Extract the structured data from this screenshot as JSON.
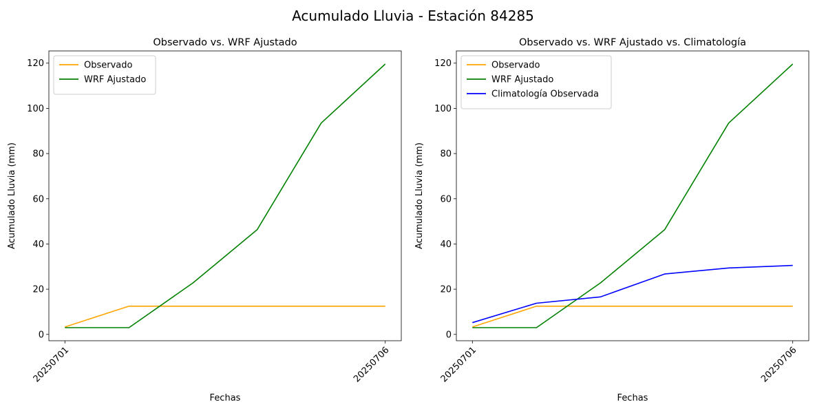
{
  "figure": {
    "title": "Acumulado Lluvia - Estación 84285"
  },
  "chart_data": [
    {
      "type": "line",
      "title": "Observado vs. WRF Ajustado",
      "xlabel": "Fechas",
      "ylabel": "Acumulado Lluvia (mm)",
      "x": [
        "20250701",
        "20250702",
        "20250703",
        "20250704",
        "20250705",
        "20250706"
      ],
      "xticks": [
        "20250701",
        "20250706"
      ],
      "yticks": [
        0,
        20,
        40,
        60,
        80,
        100,
        120
      ],
      "ylim": [
        -2.8,
        125.4
      ],
      "grid": false,
      "legend": "top-left",
      "series": [
        {
          "name": "Observado",
          "color": "#ffa500",
          "values": [
            3.3,
            12.5,
            12.5,
            12.5,
            12.5,
            12.5
          ]
        },
        {
          "name": "WRF Ajustado",
          "color": "#008000",
          "values": [
            3.0,
            3.0,
            22.8,
            46.3,
            93.5,
            119.6
          ]
        }
      ]
    },
    {
      "type": "line",
      "title": "Observado vs. WRF Ajustado vs. Climatología",
      "xlabel": "Fechas",
      "ylabel": "Acumulado Lluvia (mm)",
      "x": [
        "20250701",
        "20250702",
        "20250703",
        "20250704",
        "20250705",
        "20250706"
      ],
      "xticks": [
        "20250701",
        "20250706"
      ],
      "yticks": [
        0,
        20,
        40,
        60,
        80,
        100,
        120
      ],
      "ylim": [
        -2.8,
        125.4
      ],
      "grid": false,
      "legend": "top-left",
      "series": [
        {
          "name": "Observado",
          "color": "#ffa500",
          "values": [
            3.3,
            12.5,
            12.5,
            12.5,
            12.5,
            12.5
          ]
        },
        {
          "name": "WRF Ajustado",
          "color": "#008000",
          "values": [
            3.0,
            3.0,
            22.8,
            46.3,
            93.5,
            119.6
          ]
        },
        {
          "name": "Climatología Observada",
          "color": "#0000ff",
          "values": [
            5.2,
            13.8,
            16.6,
            26.7,
            29.4,
            30.5
          ]
        }
      ]
    }
  ]
}
